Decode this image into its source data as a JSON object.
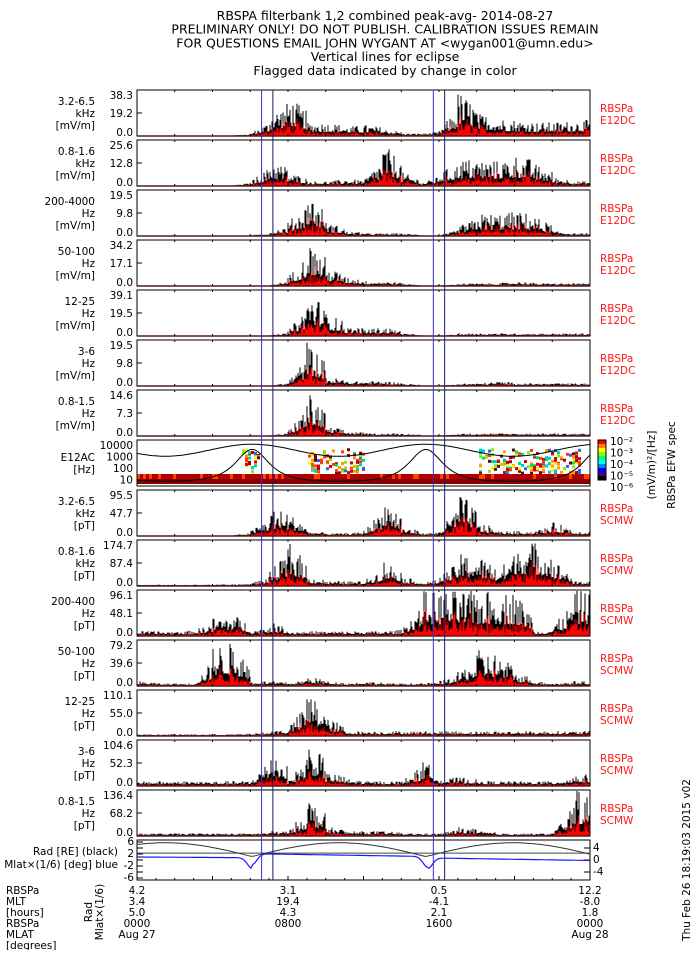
{
  "title_lines": [
    "RBSPA filterbank 1,2 combined peak-avg- 2014-08-27",
    "PRELIMINARY ONLY! DO NOT PUBLISH. CALIBRATION ISSUES REMAIN",
    "FOR QUESTIONS EMAIL JOHN WYGANT AT <wygan001@umn.edu>",
    "Vertical lines for eclipse",
    "Flagged data indicated by change in color"
  ],
  "colors": {
    "peak": "#000000",
    "avg": "#ff0000",
    "eclipse": "#3333cc",
    "source_label": "#ff1a1a",
    "mlat": "#1a1aff"
  },
  "chart_data": {
    "type": "line",
    "x_unit": "UT hours from 2014-08-27 0000",
    "xlim": [
      0,
      24
    ],
    "eclipse_lines_hours": [
      6.6,
      7.2,
      15.7,
      16.3
    ],
    "panels": [
      {
        "ylabel": [
          "3.2-6.5",
          "kHz",
          "[mV/m]"
        ],
        "ticks": [
          "38.3",
          "19.2",
          "0.0"
        ],
        "ylim": [
          0,
          38.3
        ],
        "source": [
          "RBSPa",
          "E12DC"
        ],
        "hourly_peak_fraction": [
          0,
          0,
          0,
          0,
          0,
          0,
          0.05,
          0.5,
          0.9,
          0.3,
          0.3,
          0.2,
          0.25,
          0.15,
          0.05,
          0.05,
          0.1,
          1.0,
          0.5,
          0.4,
          0.35,
          0.3,
          0.3,
          0.35
        ]
      },
      {
        "ylabel": [
          "0.8-1.6",
          "kHz",
          "[mV/m]"
        ],
        "ticks": [
          "25.6",
          "12.8",
          "0.0"
        ],
        "ylim": [
          0,
          25.6
        ],
        "source": [
          "RBSPa",
          "E12DC"
        ],
        "hourly_peak_fraction": [
          0,
          0,
          0,
          0,
          0,
          0,
          0.1,
          0.6,
          0.3,
          0.1,
          0.1,
          0.15,
          0.1,
          0.95,
          0.3,
          0.05,
          0.3,
          0.6,
          0.6,
          0.55,
          0.7,
          0.5,
          0.2,
          0.1
        ]
      },
      {
        "ylabel": [
          "200-4000",
          "Hz",
          "[mV/m]"
        ],
        "ticks": [
          "19.5",
          "9.8",
          "0.0"
        ],
        "ylim": [
          0,
          19.5
        ],
        "source": [
          "RBSPa",
          "E12DC"
        ],
        "hourly_peak_fraction": [
          0,
          0,
          0,
          0,
          0,
          0,
          0,
          0.1,
          0.3,
          1.0,
          0.3,
          0.1,
          0.05,
          0.05,
          0.05,
          0,
          0,
          0.2,
          0.5,
          0.5,
          0.55,
          0.45,
          0.1,
          0.05
        ]
      },
      {
        "ylabel": [
          "50-100",
          "Hz",
          "[mV/m]"
        ],
        "ticks": [
          "34.2",
          "17.1",
          "0.0"
        ],
        "ylim": [
          0,
          34.2
        ],
        "source": [
          "RBSPa",
          "E12DC"
        ],
        "hourly_peak_fraction": [
          0,
          0,
          0,
          0,
          0,
          0,
          0,
          0,
          0.2,
          1.0,
          0.4,
          0.2,
          0.1,
          0.1,
          0.05,
          0,
          0,
          0.05,
          0.05,
          0.05,
          0.1,
          0.05,
          0.05,
          0.05
        ]
      },
      {
        "ylabel": [
          "12-25",
          "Hz",
          "[mV/m]"
        ],
        "ticks": [
          "39.1",
          "19.5",
          "0.0"
        ],
        "ylim": [
          0,
          39.1
        ],
        "source": [
          "RBSPa",
          "E12DC"
        ],
        "hourly_peak_fraction": [
          0,
          0,
          0,
          0,
          0,
          0,
          0,
          0,
          0.1,
          1.0,
          0.5,
          0.2,
          0.15,
          0.2,
          0.05,
          0,
          0,
          0.05,
          0.05,
          0.05,
          0.05,
          0.05,
          0.05,
          0.05
        ]
      },
      {
        "ylabel": [
          "3-6",
          "Hz",
          "[mV/m]"
        ],
        "ticks": [
          "19.5",
          "9.8",
          "0.0"
        ],
        "ylim": [
          0,
          19.5
        ],
        "source": [
          "RBSPa",
          "E12DC"
        ],
        "hourly_peak_fraction": [
          0,
          0,
          0,
          0,
          0,
          0,
          0,
          0,
          0.1,
          1.0,
          0.2,
          0.1,
          0.1,
          0.1,
          0.05,
          0,
          0,
          0.05,
          0.05,
          0.1,
          0.05,
          0.05,
          0.05,
          0.05
        ]
      },
      {
        "ylabel": [
          "0.8-1.5",
          "Hz",
          "[mV/m]"
        ],
        "ticks": [
          "14.6",
          "7.3",
          "0.0"
        ],
        "ylim": [
          0,
          14.6
        ],
        "source": [
          "RBSPa",
          "E12DC"
        ],
        "hourly_peak_fraction": [
          0,
          0,
          0,
          0,
          0,
          0,
          0,
          0,
          0.1,
          1.0,
          0.2,
          0.1,
          0.05,
          0.05,
          0.05,
          0,
          0,
          0.05,
          0.05,
          0.05,
          0.05,
          0.05,
          0.05,
          0.05
        ]
      },
      {
        "spectrogram": true,
        "ylabel": [
          "E12AC",
          "[Hz]"
        ],
        "ticks": [
          "10000",
          "1000",
          "100",
          "10"
        ],
        "colorbar_ticks": [
          "10⁻²",
          "10⁻³",
          "10⁻⁴",
          "10⁻⁵",
          "10⁻⁶"
        ],
        "colorbar_label": "(mV/m)²/[Hz]",
        "colorbar_title": "RBSPa EFW spec"
      },
      {
        "ylabel": [
          "3.2-6.5",
          "kHz",
          "[pT]"
        ],
        "ticks": [
          "95.5",
          "47.7",
          "0.0"
        ],
        "ylim": [
          0,
          95.5
        ],
        "source": [
          "RBSPa",
          "SCMW"
        ],
        "hourly_peak_fraction": [
          0,
          0,
          0,
          0,
          0,
          0,
          0.1,
          0.6,
          0.5,
          0.1,
          0.05,
          0.05,
          0.1,
          0.9,
          0.2,
          0.05,
          0.1,
          1.0,
          0.3,
          0.1,
          0.1,
          0.1,
          0.3,
          0.1
        ]
      },
      {
        "ylabel": [
          "0.8-1.6",
          "kHz",
          "[pT]"
        ],
        "ticks": [
          "174.7",
          "87.4",
          "0.0"
        ],
        "ylim": [
          0,
          174.7
        ],
        "source": [
          "RBSPa",
          "SCMW"
        ],
        "hourly_peak_fraction": [
          0.02,
          0.02,
          0.02,
          0.02,
          0.03,
          0.03,
          0.05,
          0.3,
          1.0,
          0.2,
          0.1,
          0.1,
          0.1,
          0.6,
          0.2,
          0.05,
          0.2,
          0.7,
          0.7,
          0.3,
          1.0,
          1.0,
          0.6,
          0.1
        ]
      },
      {
        "ylabel": [
          "200-400",
          "Hz",
          "[pT]"
        ],
        "ticks": [
          "96.1",
          "48.1",
          "0.0"
        ],
        "ylim": [
          0,
          96.1
        ],
        "source": [
          "RBSPa",
          "SCMW"
        ],
        "hourly_peak_fraction": [
          0.1,
          0.1,
          0.1,
          0.12,
          0.4,
          0.5,
          0.1,
          0.3,
          0.1,
          0.1,
          0.1,
          0.1,
          0.1,
          0.1,
          0.15,
          1.0,
          1.0,
          1.0,
          1.0,
          1.0,
          1.0,
          0.1,
          0.2,
          1.0
        ]
      },
      {
        "ylabel": [
          "50-100",
          "Hz",
          "[pT]"
        ],
        "ticks": [
          "79.2",
          "39.6",
          "0.0"
        ],
        "ylim": [
          0,
          79.2
        ],
        "source": [
          "RBSPa",
          "SCMW"
        ],
        "hourly_peak_fraction": [
          0.1,
          0.05,
          0.05,
          0.05,
          0.9,
          1.0,
          0.1,
          0.1,
          0.05,
          0.2,
          0.1,
          0.05,
          0.1,
          0.05,
          0.05,
          0.05,
          0.1,
          0.3,
          0.8,
          0.7,
          0.3,
          0.1,
          0.05,
          0.1
        ]
      },
      {
        "ylabel": [
          "12-25",
          "Hz",
          "[pT]"
        ],
        "ticks": [
          "110.1",
          "55.0",
          "0.0"
        ],
        "ylim": [
          0,
          110.1
        ],
        "source": [
          "RBSPa",
          "SCMW"
        ],
        "hourly_peak_fraction": [
          0.03,
          0.03,
          0.03,
          0.03,
          0.03,
          0.03,
          0.05,
          0.1,
          0.2,
          1.0,
          0.4,
          0.1,
          0.1,
          0.1,
          0.1,
          0.1,
          0.1,
          0.1,
          0.1,
          0.1,
          0.1,
          0.1,
          0.1,
          0.1
        ]
      },
      {
        "ylabel": [
          "3-6",
          "Hz",
          "[pT]"
        ],
        "ticks": [
          "104.6",
          "52.3",
          "0.0"
        ],
        "ylim": [
          0,
          104.6
        ],
        "source": [
          "RBSPa",
          "SCMW"
        ],
        "hourly_peak_fraction": [
          0.1,
          0.1,
          0.1,
          0.1,
          0.1,
          0.1,
          0.1,
          0.9,
          0.1,
          1.0,
          0.3,
          0.15,
          0.1,
          0.1,
          0.1,
          0.6,
          0.15,
          0.2,
          0.1,
          0.1,
          0.1,
          0.1,
          0.1,
          0.25
        ]
      },
      {
        "ylabel": [
          "0.8-1.5",
          "Hz",
          "[pT]"
        ],
        "ticks": [
          "136.4",
          "68.2",
          "0.0"
        ],
        "ylim": [
          0,
          136.4
        ],
        "source": [
          "RBSPa",
          "SCMW"
        ],
        "hourly_peak_fraction": [
          0.05,
          0.05,
          0.05,
          0.05,
          0.05,
          0.05,
          0.05,
          0.1,
          0.1,
          0.9,
          0.2,
          0.1,
          0.1,
          0.1,
          0.05,
          0.05,
          0.05,
          0.2,
          0.1,
          0.05,
          0.05,
          0.05,
          0.05,
          1.0
        ]
      },
      {
        "orbit": true,
        "ylabel": [
          "Rad [RE] (black)",
          "Mlat×(1/6) [deg] blue"
        ],
        "ylim": [
          -6,
          6
        ],
        "ticks": [
          "6",
          "4",
          "2",
          "0",
          "-2",
          "-4",
          "-6"
        ],
        "side_stamp": "Thu Feb 26 18:19:03 2015 v02"
      }
    ],
    "bottom_axis": {
      "row_labels": [
        "RBSPa",
        "MLT",
        "[hours]",
        "RBSPa",
        "MLAT",
        "[degrees]"
      ],
      "side_labels": [
        "Rad",
        "Mlat×(1/6)"
      ],
      "columns": [
        {
          "hour": 0,
          "values": [
            "4.2",
            "3.4",
            "5.0",
            "0000",
            "Aug 27"
          ]
        },
        {
          "hour": 8,
          "values": [
            "3.1",
            "19.4",
            "4.3",
            "0800",
            ""
          ]
        },
        {
          "hour": 16,
          "values": [
            "0.5",
            "-4.1",
            "2.1",
            "1600",
            ""
          ]
        },
        {
          "hour": 24,
          "values": [
            "12.2",
            "-8.0",
            "1.8",
            "0000",
            "Aug 28"
          ]
        }
      ]
    }
  }
}
